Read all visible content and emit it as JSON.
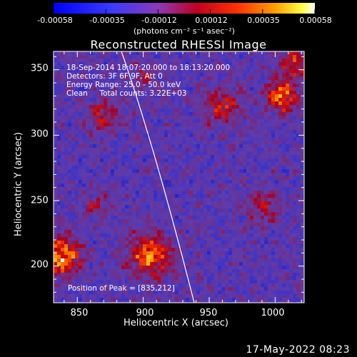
{
  "colorbar": {
    "tick_labels": [
      "-0.00058",
      "-0.00035",
      "-0.00012",
      "0.00012",
      "0.00035",
      "0.00058"
    ],
    "unit_label": "(photons cm⁻² s⁻¹ asec⁻²)"
  },
  "plot": {
    "title": "Reconstructed RHESSI Image",
    "info_lines": [
      "18-Sep-2014 18:07:20.000 to 18:13:20.000",
      "Detectors: 3F 6F 9F, Att 0",
      "Energy Range: 25.0 - 50.0 keV",
      "Clean     Total counts: 3.22E+03"
    ],
    "peak_text": "Position of Peak = [835,212]"
  },
  "chart_data": {
    "type": "heatmap",
    "title": "Reconstructed RHESSI Image",
    "xlabel": "Heliocentric X (arcsec)",
    "ylabel": "Heliocentric Y (arcsec)",
    "x_ticks": [
      "850",
      "900",
      "950",
      "1000"
    ],
    "y_ticks": [
      "200",
      "250",
      "300",
      "350"
    ],
    "xlim": [
      832,
      1022
    ],
    "ylim": [
      172,
      364
    ],
    "clim": [
      -0.00058,
      0.00058
    ],
    "peak": [
      835,
      212
    ]
  },
  "footer": {
    "timestamp": "17-May-2022 08:23"
  }
}
